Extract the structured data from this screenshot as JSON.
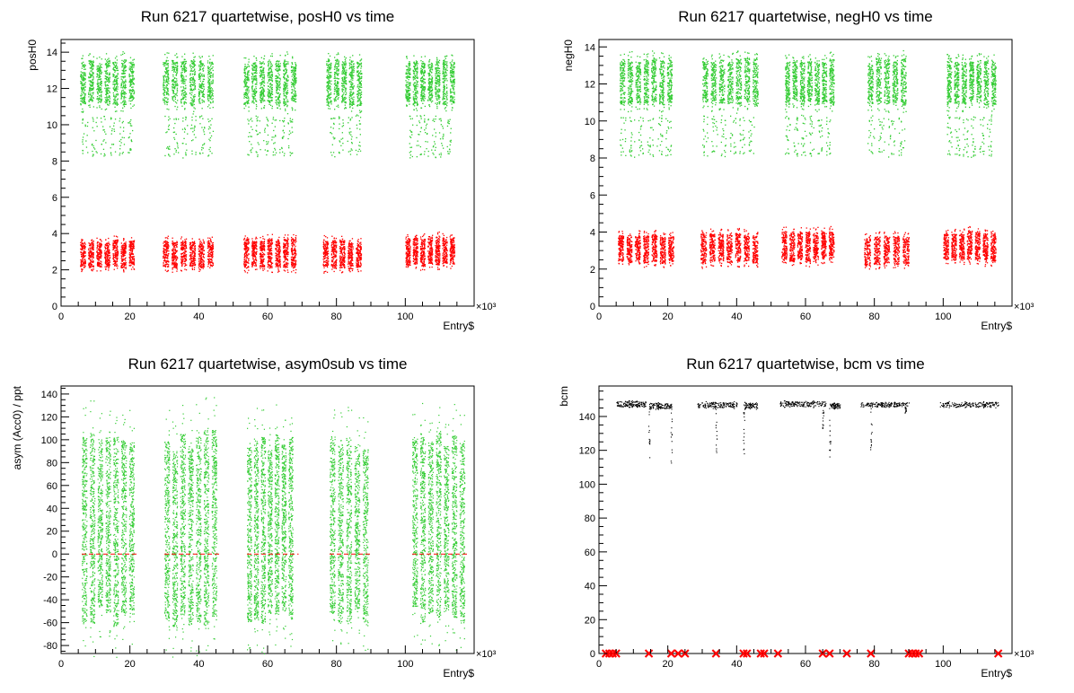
{
  "chart_data": [
    {
      "type": "scatter",
      "title": "Run 6217 quartetwise, posH0 vs time",
      "xlabel": "Entry$",
      "ylabel": "posH0",
      "x_multiplier": "×10³",
      "xlim": [
        0,
        120
      ],
      "ylim": [
        0,
        14.7
      ],
      "xticks": [
        0,
        20,
        40,
        60,
        80,
        100
      ],
      "yticks": [
        0,
        2,
        4,
        6,
        8,
        10,
        12,
        14
      ],
      "point_size": 1.3,
      "seed": 11,
      "series": [
        {
          "color": "#33cc33",
          "bands": [
            {
              "x": [
                5.5,
                22.0
              ],
              "n_strips": 7,
              "y": [
                11.2,
                13.5
              ],
              "density": 130
            },
            {
              "x": [
                29.5,
                45.0
              ],
              "n_strips": 6,
              "y": [
                11.2,
                13.5
              ],
              "density": 130
            },
            {
              "x": [
                53.0,
                69.0
              ],
              "n_strips": 7,
              "y": [
                11.2,
                13.5
              ],
              "density": 130
            },
            {
              "x": [
                77.0,
                88.0
              ],
              "n_strips": 5,
              "y": [
                11.2,
                13.5
              ],
              "density": 130
            },
            {
              "x": [
                100.0,
                115.0
              ],
              "n_strips": 7,
              "y": [
                11.2,
                13.5
              ],
              "density": 130
            },
            {
              "x": [
                6.0,
                22.0
              ],
              "n_strips": 6,
              "y": [
                8.6,
                10.2
              ],
              "density": 12
            },
            {
              "x": [
                30.0,
                45.0
              ],
              "n_strips": 6,
              "y": [
                8.6,
                10.2
              ],
              "density": 12
            },
            {
              "x": [
                54.0,
                68.0
              ],
              "n_strips": 6,
              "y": [
                8.6,
                10.2
              ],
              "density": 12
            },
            {
              "x": [
                78.0,
                88.0
              ],
              "n_strips": 4,
              "y": [
                8.6,
                10.2
              ],
              "density": 12
            },
            {
              "x": [
                101.0,
                114.0
              ],
              "n_strips": 6,
              "y": [
                8.6,
                10.2
              ],
              "density": 12
            }
          ]
        },
        {
          "color": "#ff0000",
          "bands": [
            {
              "x": [
                5.5,
                22.0
              ],
              "n_strips": 7,
              "y": [
                2.2,
                3.6
              ],
              "density": 130
            },
            {
              "x": [
                29.5,
                45.0
              ],
              "n_strips": 6,
              "y": [
                2.2,
                3.6
              ],
              "density": 130
            },
            {
              "x": [
                53.0,
                69.0
              ],
              "n_strips": 7,
              "y": [
                2.2,
                3.7
              ],
              "density": 130
            },
            {
              "x": [
                76.0,
                88.0
              ],
              "n_strips": 5,
              "y": [
                2.1,
                3.6
              ],
              "density": 130
            },
            {
              "x": [
                100.0,
                115.0
              ],
              "n_strips": 7,
              "y": [
                2.3,
                3.8
              ],
              "density": 130
            }
          ]
        }
      ]
    },
    {
      "type": "scatter",
      "title": "Run 6217 quartetwise, negH0 vs time",
      "xlabel": "Entry$",
      "ylabel": "negH0",
      "x_multiplier": "×10³",
      "xlim": [
        0,
        120
      ],
      "ylim": [
        0,
        14.4
      ],
      "xticks": [
        0,
        20,
        40,
        60,
        80,
        100
      ],
      "yticks": [
        0,
        2,
        4,
        6,
        8,
        10,
        12,
        14
      ],
      "point_size": 1.3,
      "seed": 23,
      "series": [
        {
          "color": "#33cc33",
          "bands": [
            {
              "x": [
                6.0,
                22.0
              ],
              "n_strips": 7,
              "y": [
                11.0,
                13.3
              ],
              "density": 130
            },
            {
              "x": [
                30.0,
                47.0
              ],
              "n_strips": 7,
              "y": [
                11.0,
                13.3
              ],
              "density": 130
            },
            {
              "x": [
                54.0,
                69.0
              ],
              "n_strips": 7,
              "y": [
                11.0,
                13.3
              ],
              "density": 130
            },
            {
              "x": [
                78.0,
                90.0
              ],
              "n_strips": 5,
              "y": [
                11.0,
                13.3
              ],
              "density": 130
            },
            {
              "x": [
                101.0,
                116.0
              ],
              "n_strips": 7,
              "y": [
                11.0,
                13.3
              ],
              "density": 130
            },
            {
              "x": [
                6.0,
                22.0
              ],
              "n_strips": 6,
              "y": [
                8.4,
                10.0
              ],
              "density": 12
            },
            {
              "x": [
                30.0,
                46.0
              ],
              "n_strips": 6,
              "y": [
                8.4,
                10.0
              ],
              "density": 12
            },
            {
              "x": [
                54.0,
                68.0
              ],
              "n_strips": 6,
              "y": [
                8.4,
                10.0
              ],
              "density": 12
            },
            {
              "x": [
                78.0,
                90.0
              ],
              "n_strips": 4,
              "y": [
                8.4,
                10.0
              ],
              "density": 12
            },
            {
              "x": [
                101.0,
                115.0
              ],
              "n_strips": 6,
              "y": [
                8.4,
                10.0
              ],
              "density": 12
            }
          ]
        },
        {
          "color": "#ff0000",
          "bands": [
            {
              "x": [
                5.5,
                22.5
              ],
              "n_strips": 7,
              "y": [
                2.4,
                3.8
              ],
              "density": 130
            },
            {
              "x": [
                29.5,
                47.0
              ],
              "n_strips": 7,
              "y": [
                2.4,
                3.9
              ],
              "density": 130
            },
            {
              "x": [
                53.0,
                69.0
              ],
              "n_strips": 7,
              "y": [
                2.5,
                4.0
              ],
              "density": 130
            },
            {
              "x": [
                77.0,
                91.0
              ],
              "n_strips": 5,
              "y": [
                2.3,
                3.8
              ],
              "density": 130
            },
            {
              "x": [
                100.0,
                116.0
              ],
              "n_strips": 7,
              "y": [
                2.5,
                4.0
              ],
              "density": 130
            }
          ]
        }
      ]
    },
    {
      "type": "scatter",
      "title": "Run 6217 quartetwise, asym0sub vs time",
      "xlabel": "Entry$",
      "ylabel": "asym (Acc0) / ppt",
      "x_multiplier": "×10³",
      "xlim": [
        0,
        120
      ],
      "ylim": [
        -87,
        147
      ],
      "xticks": [
        0,
        20,
        40,
        60,
        80,
        100
      ],
      "yticks": [
        -80,
        -60,
        -40,
        -20,
        0,
        20,
        40,
        60,
        80,
        100,
        120,
        140
      ],
      "point_size": 1.2,
      "seed": 37,
      "series": [
        {
          "color": "#33cc33",
          "bands": [
            {
              "x": [
                6.0,
                22.0
              ],
              "n_strips": 7,
              "y": [
                -55,
                100
              ],
              "density": 330
            },
            {
              "x": [
                30.0,
                46.0
              ],
              "n_strips": 7,
              "y": [
                -55,
                100
              ],
              "density": 330
            },
            {
              "x": [
                54.0,
                68.0
              ],
              "n_strips": 7,
              "y": [
                -55,
                100
              ],
              "density": 330
            },
            {
              "x": [
                78.0,
                90.0
              ],
              "n_strips": 5,
              "y": [
                -55,
                100
              ],
              "density": 330
            },
            {
              "x": [
                102.0,
                118.0
              ],
              "n_strips": 7,
              "y": [
                -55,
                100
              ],
              "density": 330
            }
          ]
        },
        {
          "color": "#ff0000",
          "type": "segments",
          "y": 0,
          "ranges": [
            [
              6,
              22
            ],
            [
              30,
              46
            ],
            [
              54,
              69
            ],
            [
              78,
              90
            ],
            [
              102,
              118
            ]
          ]
        }
      ]
    },
    {
      "type": "scatter",
      "title": "Run 6217 quartetwise, bcm vs time",
      "xlabel": "Entry$",
      "ylabel": "bcm",
      "x_multiplier": "×10³",
      "xlim": [
        0,
        120
      ],
      "ylim": [
        0,
        158
      ],
      "xticks": [
        0,
        20,
        40,
        60,
        80,
        100
      ],
      "yticks": [
        0,
        20,
        40,
        60,
        80,
        100,
        120,
        140
      ],
      "point_size": 1.1,
      "seed": 51,
      "series": [
        {
          "color": "#000000",
          "bands": [
            {
              "x": [
                5.0,
                13.5
              ],
              "n_strips": 1,
              "y": [
                146,
                149
              ],
              "density": 140
            },
            {
              "x": [
                14.5,
                21.0
              ],
              "n_strips": 1,
              "y": [
                145,
                148
              ],
              "density": 110
            },
            {
              "x": [
                28.5,
                40.0
              ],
              "n_strips": 1,
              "y": [
                145.5,
                148.5
              ],
              "density": 150
            },
            {
              "x": [
                42.0,
                46.0
              ],
              "n_strips": 1,
              "y": [
                145,
                148
              ],
              "density": 70
            },
            {
              "x": [
                52.5,
                66.0
              ],
              "n_strips": 1,
              "y": [
                146,
                149
              ],
              "density": 170
            },
            {
              "x": [
                67.0,
                70.0
              ],
              "n_strips": 1,
              "y": [
                145,
                148
              ],
              "density": 60
            },
            {
              "x": [
                76.0,
                90.0
              ],
              "n_strips": 1,
              "y": [
                146,
                148.5
              ],
              "density": 160
            },
            {
              "x": [
                99.0,
                116.0
              ],
              "n_strips": 1,
              "y": [
                145.5,
                148.5
              ],
              "density": 180
            }
          ],
          "spikes": [
            [
              14.5,
              113,
              145
            ],
            [
              21.0,
              112,
              146
            ],
            [
              34.0,
              118,
              145
            ],
            [
              42.0,
              118,
              145
            ],
            [
              65.0,
              128,
              145
            ],
            [
              67.0,
              115,
              145
            ],
            [
              79.0,
              116,
              145
            ],
            [
              89.0,
              142,
              146
            ]
          ]
        },
        {
          "color": "#ff0000",
          "type": "xmarkers",
          "y": 0,
          "x": [
            2.0,
            3.0,
            4.0,
            5.0,
            14.5,
            21.0,
            23.0,
            25.0,
            34.0,
            42.0,
            43.0,
            47.0,
            48.0,
            52.0,
            65.0,
            67.0,
            72.0,
            79.0,
            90.0,
            91.0,
            92.0,
            93.0,
            116.0
          ]
        }
      ]
    }
  ]
}
